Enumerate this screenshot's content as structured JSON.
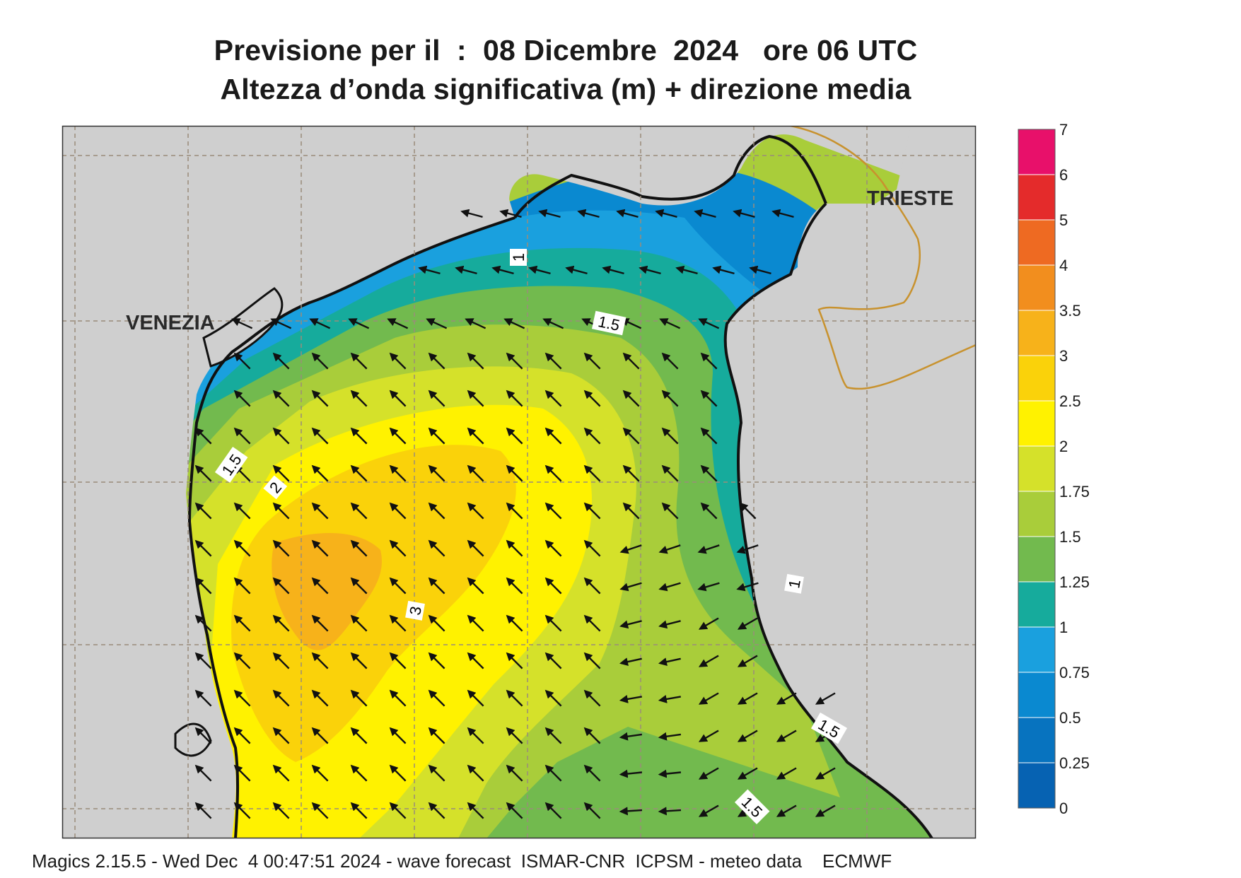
{
  "title": {
    "line1": "Previsione per il  :  08 Dicembre  2024   ore 06 UTC",
    "line2": "Altezza d’onda significativa (m) + direzione media"
  },
  "map": {
    "cities": [
      "VENEZIA",
      "TRIESTE"
    ],
    "contour_labels": [
      "1",
      "1",
      "1.5",
      "1.5",
      "1.5",
      "1.5",
      "2",
      "3"
    ],
    "colors": {
      "land": "#cfcfcf",
      "coast": "#111111",
      "border": "#c8922e",
      "grid": "#9a8c7a"
    }
  },
  "colorbar": {
    "labels": [
      "7",
      "6",
      "5",
      "4",
      "3.5",
      "3",
      "2.5",
      "2",
      "1.75",
      "1.5",
      "1.25",
      "1",
      "0.75",
      "0.5",
      "0.25",
      "0"
    ],
    "colors": [
      "#e8106a",
      "#e42b2b",
      "#ee6a22",
      "#f28e1e",
      "#f7b21a",
      "#fad20a",
      "#fff200",
      "#d5e12a",
      "#a9cd3a",
      "#72ba4e",
      "#16ab9c",
      "#1aa0de",
      "#0a89d0",
      "#0773bf",
      "#0662b2"
    ]
  },
  "footer": "Magics 2.15.5 - Wed Dec  4 00:47:51 2024 - wave forecast  ISMAR-CNR  ICPSM - meteo data    ECMWF"
}
